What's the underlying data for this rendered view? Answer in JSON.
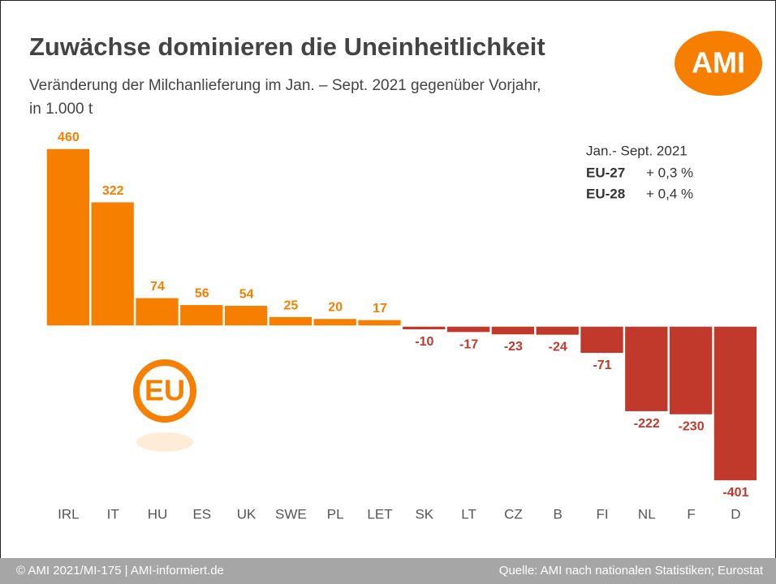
{
  "chart_data": {
    "type": "bar",
    "title": "Zuwächse dominieren die Uneinheitlichkeit",
    "subtitle": [
      "Veränderung der Milchanlieferung im Jan. – Sept. 2021 gegenüber Vorjahr,",
      "in 1.000 t"
    ],
    "logo": "AMI",
    "eu_logo": "EU",
    "annotation": {
      "period": "Jan.- Sept. 2021",
      "rows": [
        {
          "name": "EU-27",
          "value": "+ 0,3 %"
        },
        {
          "name": "EU-28",
          "value": "+ 0,4 %"
        }
      ]
    },
    "categories": [
      "IRL",
      "IT",
      "HU",
      "ES",
      "UK",
      "SWE",
      "PL",
      "LET",
      "SK",
      "LT",
      "CZ",
      "B",
      "FI",
      "NL",
      "F",
      "D"
    ],
    "values": [
      460,
      322,
      74,
      56,
      54,
      25,
      20,
      17,
      -10,
      -17,
      -23,
      -24,
      -71,
      -222,
      -230,
      -401
    ],
    "positive_color": "#f77f00",
    "negative_color": "#c0392b",
    "ylim": [
      -460,
      460
    ],
    "footer_left": "© AMI 2021/MI-175 | AMI-informiert.de",
    "footer_right": "Quelle: AMI nach nationalen Statistiken; Eurostat"
  }
}
